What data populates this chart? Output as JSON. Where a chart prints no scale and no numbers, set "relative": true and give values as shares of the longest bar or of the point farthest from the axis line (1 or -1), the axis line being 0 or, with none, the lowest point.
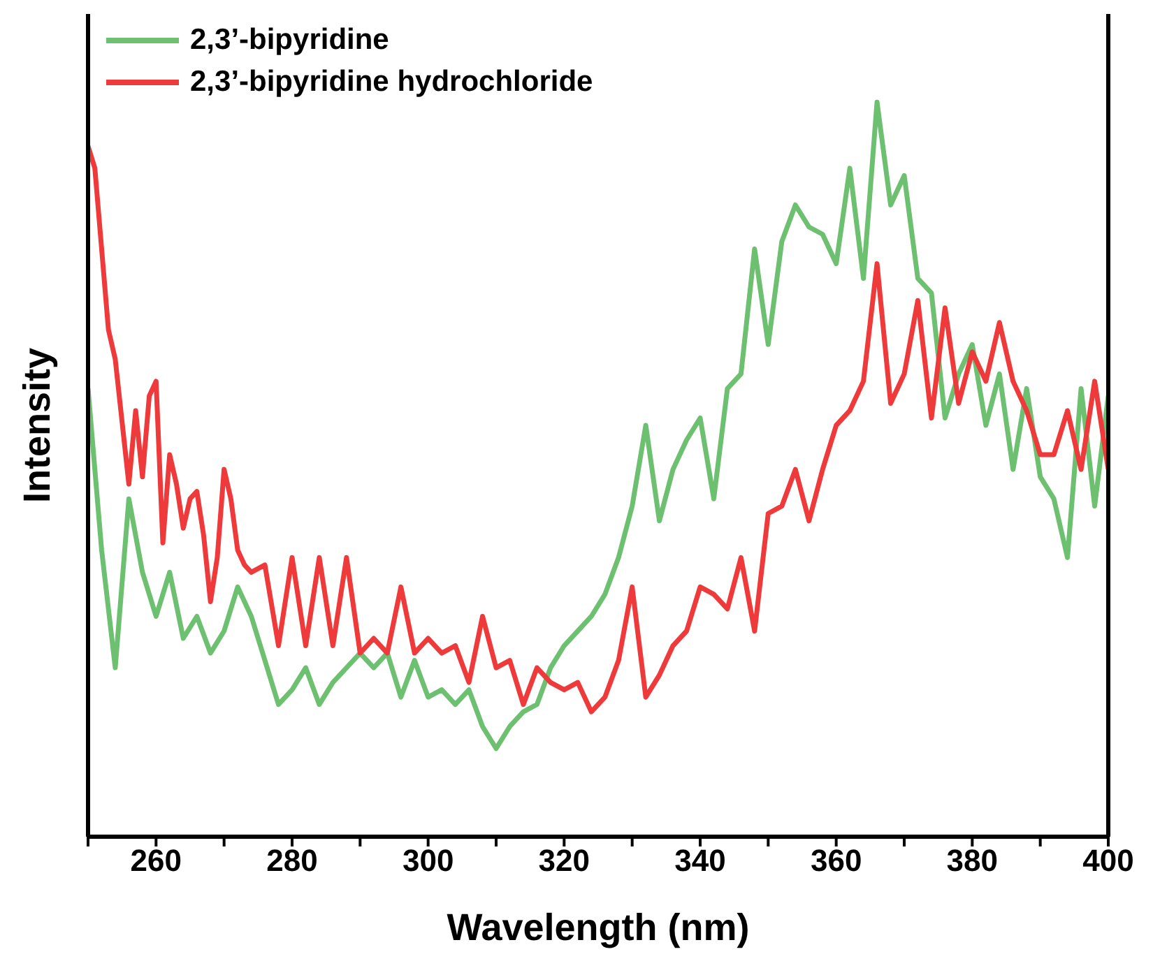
{
  "chart_data": {
    "type": "line",
    "relative": true,
    "xlabel": "Wavelength (nm)",
    "ylabel": "Intensity",
    "xlim": [
      250,
      400
    ],
    "xticks": [
      {
        "value": 250,
        "label": null
      },
      260,
      {
        "value": 270,
        "label": null
      },
      280,
      {
        "value": 290,
        "label": null
      },
      300,
      {
        "value": 310,
        "label": null
      },
      320,
      {
        "value": 330,
        "label": null
      },
      340,
      {
        "value": 350,
        "label": null
      },
      360,
      {
        "value": 370,
        "label": null
      },
      380,
      {
        "value": 390,
        "label": null
      },
      400
    ],
    "legend": "top left",
    "marker": "none",
    "line_style": "solid",
    "grid": false,
    "series": [
      {
        "name": "2,3’-bipyridine",
        "color": "#6cc070",
        "x": [
          250,
          252,
          254,
          256,
          258,
          260,
          262,
          264,
          266,
          268,
          270,
          272,
          274,
          276,
          278,
          280,
          282,
          284,
          286,
          288,
          290,
          292,
          294,
          296,
          298,
          300,
          302,
          304,
          306,
          308,
          310,
          312,
          314,
          316,
          318,
          320,
          322,
          324,
          326,
          328,
          330,
          332,
          334,
          336,
          338,
          340,
          342,
          344,
          346,
          348,
          350,
          352,
          354,
          356,
          358,
          360,
          362,
          364,
          366,
          368,
          370,
          372,
          374,
          376,
          378,
          380,
          382,
          384,
          386,
          388,
          390,
          392,
          394,
          396,
          398,
          400
        ],
        "values": [
          0.61,
          0.39,
          0.23,
          0.46,
          0.36,
          0.3,
          0.36,
          0.27,
          0.3,
          0.25,
          0.28,
          0.34,
          0.3,
          0.24,
          0.18,
          0.2,
          0.23,
          0.18,
          0.21,
          0.23,
          0.25,
          0.23,
          0.25,
          0.19,
          0.24,
          0.19,
          0.2,
          0.18,
          0.2,
          0.15,
          0.12,
          0.15,
          0.17,
          0.18,
          0.23,
          0.26,
          0.28,
          0.3,
          0.33,
          0.38,
          0.45,
          0.56,
          0.43,
          0.5,
          0.54,
          0.57,
          0.46,
          0.61,
          0.63,
          0.8,
          0.67,
          0.81,
          0.86,
          0.83,
          0.82,
          0.78,
          0.91,
          0.76,
          1,
          0.86,
          0.9,
          0.76,
          0.74,
          0.57,
          0.63,
          0.67,
          0.56,
          0.63,
          0.5,
          0.61,
          0.49,
          0.46,
          0.38,
          0.61,
          0.45,
          0.6
        ]
      },
      {
        "name": "2,3’-bipyridine hydrochloride",
        "color": "#ee3a3a",
        "x": [
          250,
          251,
          253,
          254,
          256,
          257,
          258,
          259,
          260,
          261,
          262,
          263,
          264,
          265,
          266,
          267,
          268,
          269,
          270,
          271,
          272,
          273,
          274,
          276,
          278,
          280,
          282,
          284,
          286,
          288,
          290,
          292,
          294,
          296,
          298,
          300,
          302,
          304,
          306,
          308,
          310,
          312,
          314,
          316,
          318,
          320,
          322,
          324,
          326,
          328,
          330,
          332,
          334,
          336,
          338,
          340,
          342,
          344,
          346,
          348,
          350,
          352,
          354,
          356,
          358,
          360,
          362,
          364,
          366,
          368,
          370,
          372,
          374,
          376,
          378,
          380,
          382,
          384,
          386,
          388,
          390,
          392,
          394,
          396,
          398,
          400
        ],
        "values": [
          0.94,
          0.91,
          0.69,
          0.65,
          0.48,
          0.58,
          0.49,
          0.6,
          0.62,
          0.4,
          0.52,
          0.48,
          0.42,
          0.46,
          0.47,
          0.41,
          0.32,
          0.38,
          0.5,
          0.46,
          0.39,
          0.37,
          0.36,
          0.37,
          0.26,
          0.38,
          0.26,
          0.38,
          0.26,
          0.38,
          0.25,
          0.27,
          0.25,
          0.34,
          0.25,
          0.27,
          0.25,
          0.26,
          0.21,
          0.3,
          0.23,
          0.24,
          0.18,
          0.23,
          0.21,
          0.2,
          0.21,
          0.17,
          0.19,
          0.24,
          0.34,
          0.19,
          0.22,
          0.26,
          0.28,
          0.34,
          0.33,
          0.31,
          0.38,
          0.28,
          0.44,
          0.45,
          0.5,
          0.43,
          0.5,
          0.56,
          0.58,
          0.62,
          0.78,
          0.59,
          0.63,
          0.73,
          0.57,
          0.72,
          0.59,
          0.66,
          0.62,
          0.7,
          0.62,
          0.58,
          0.52,
          0.52,
          0.58,
          0.5,
          0.62,
          0.5
        ]
      }
    ]
  }
}
